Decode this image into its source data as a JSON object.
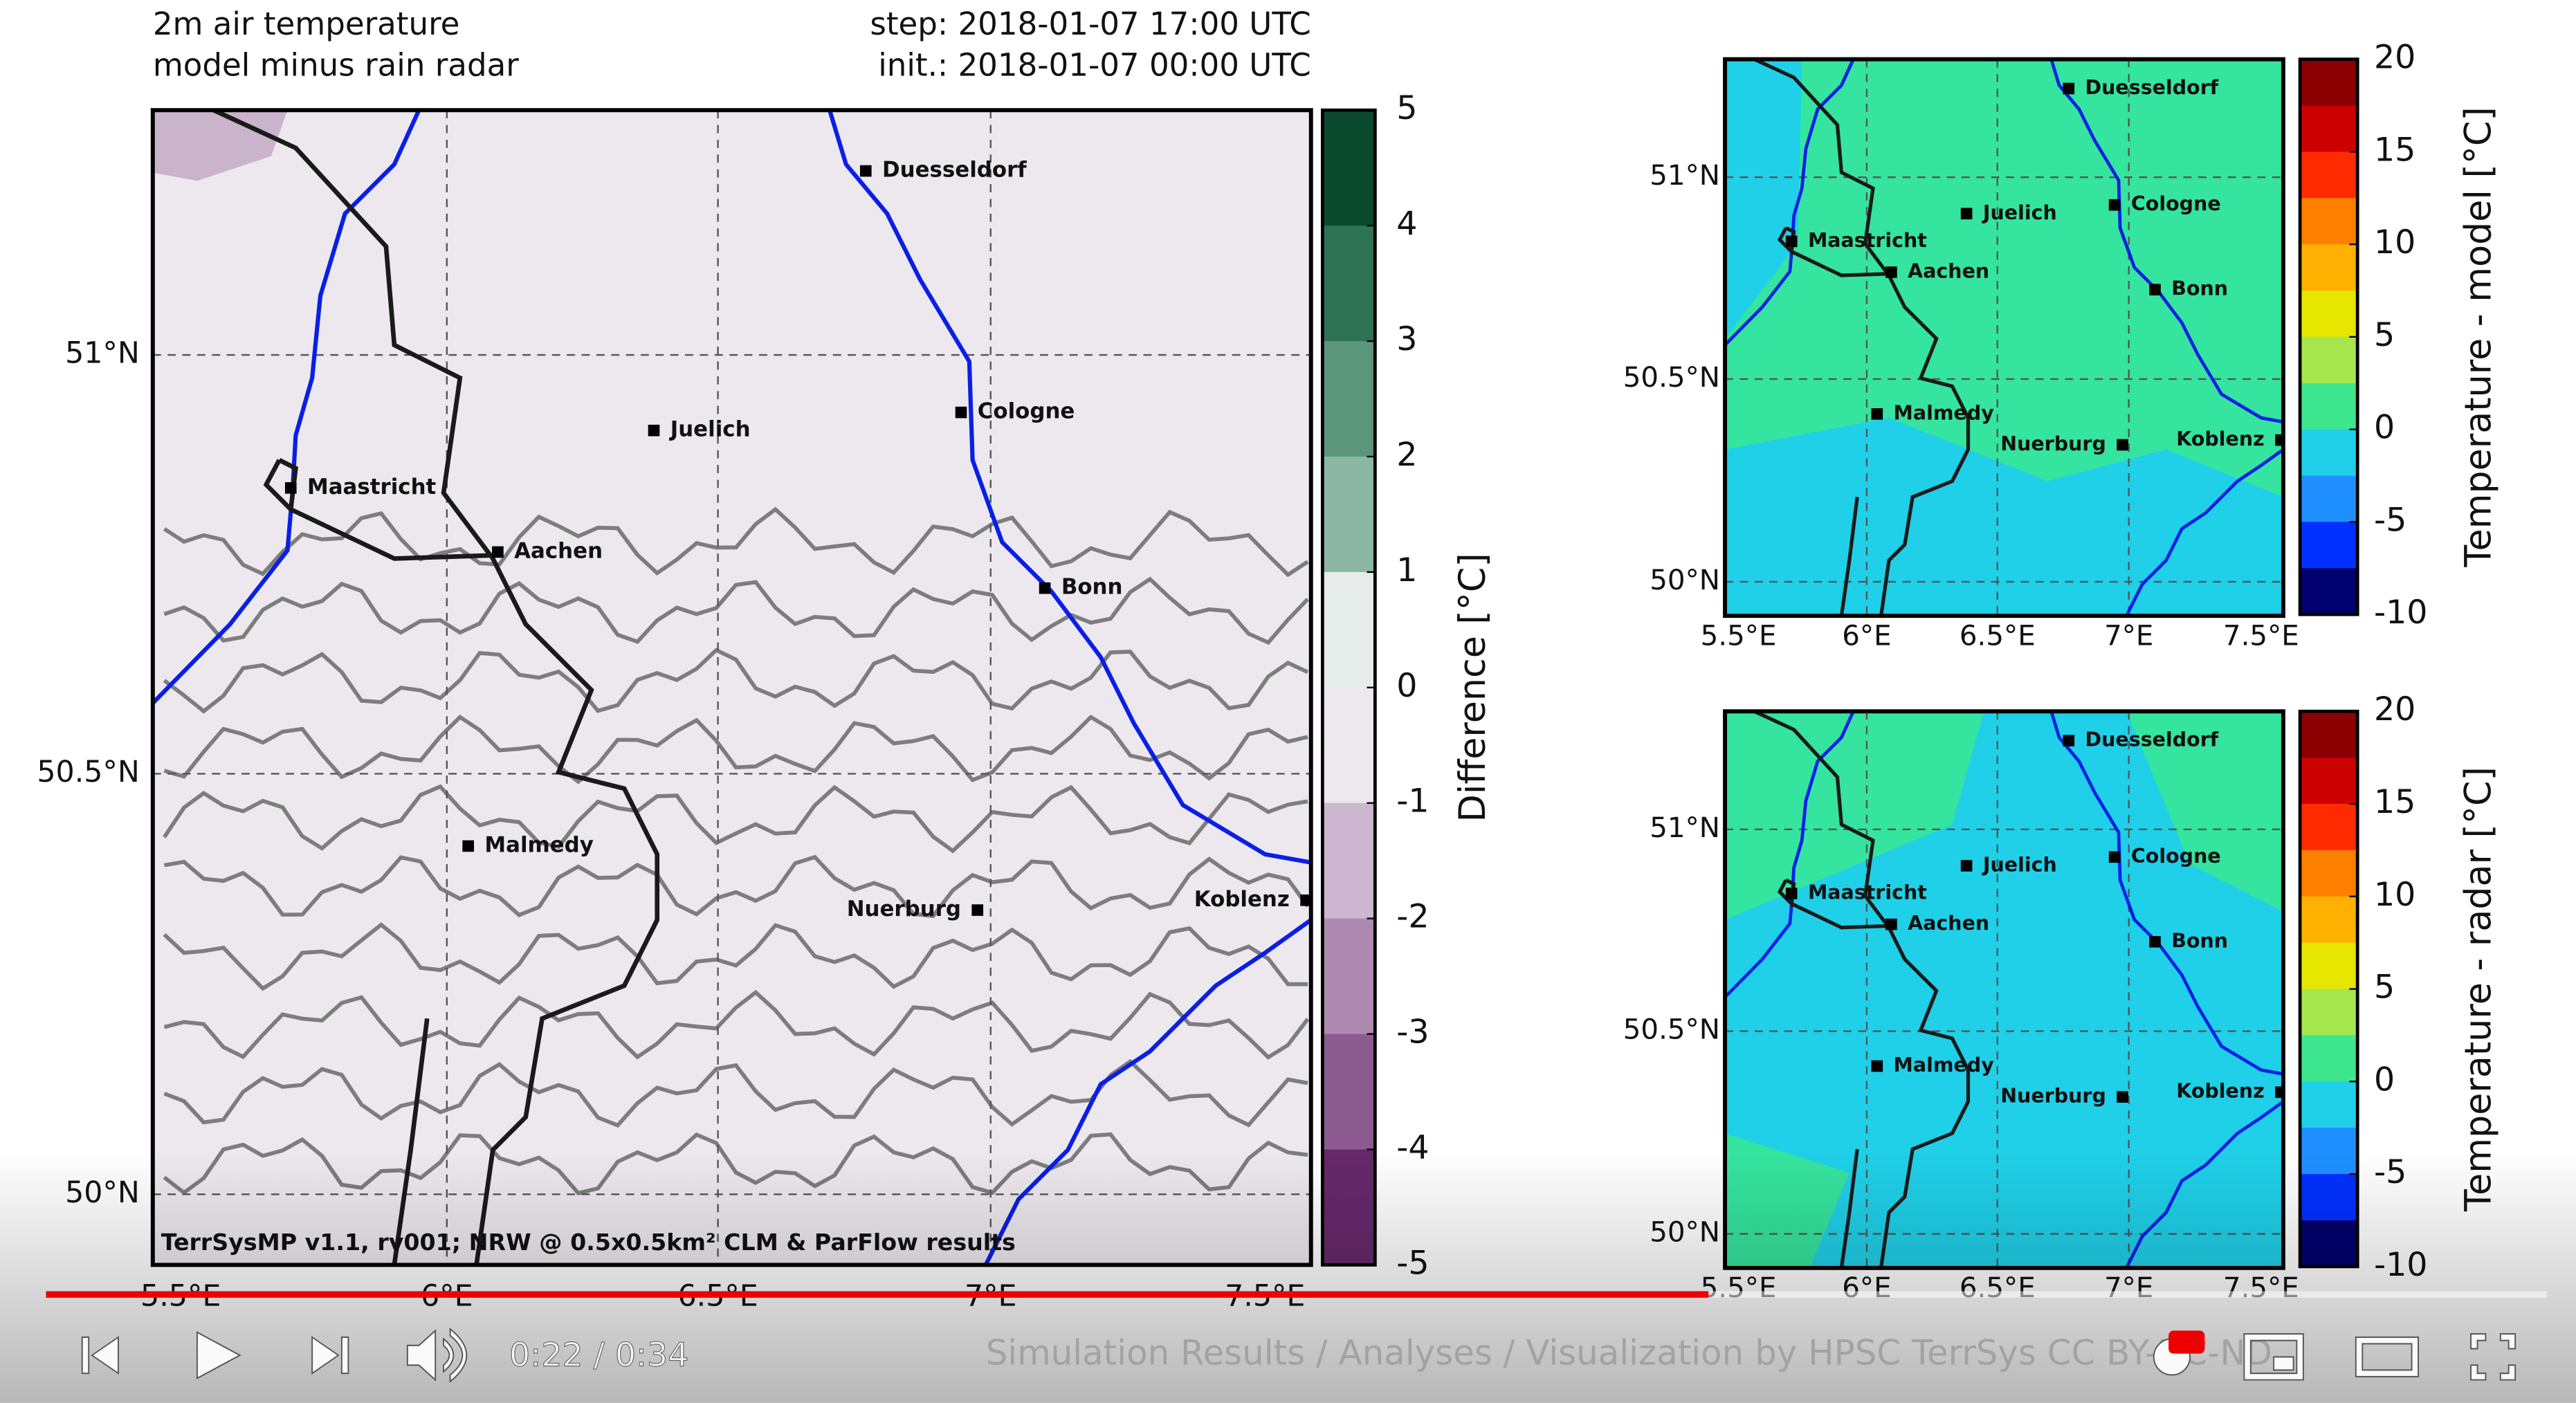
{
  "main_map": {
    "title": [
      "2m air temperature",
      "model minus rain radar"
    ],
    "step": "step: 2018-01-07 17:00 UTC",
    "init": "init.: 2018-01-07 00:00 UTC",
    "lat_labels": [
      "51°N",
      "50.5°N",
      "50°N"
    ],
    "lon_labels": [
      "5.5°E",
      "6°E",
      "6.5°E",
      "7°E",
      "7.5°E"
    ],
    "cities": [
      "Duesseldorf",
      "Juelich",
      "Cologne",
      "Maastricht",
      "Aachen",
      "Bonn",
      "Malmedy",
      "Nuerburg",
      "Koblenz"
    ],
    "colorbar": {
      "label": "Difference [°C]",
      "ticks": [
        "5",
        "4",
        "3",
        "2",
        "1",
        "0",
        "-1",
        "-2",
        "-3",
        "-4",
        "-5"
      ]
    },
    "footer": "TerrSysMP v1.1, rv001; NRW @ 0.5x0.5km² CLM & ParFlow results"
  },
  "model_map": {
    "lat_labels": [
      "51°N",
      "50.5°N",
      "50°N"
    ],
    "lon_labels": [
      "5.5°E",
      "6°E",
      "6.5°E",
      "7°E",
      "7.5°E"
    ],
    "cities": [
      "Duesseldorf",
      "Juelich",
      "Cologne",
      "Maastricht",
      "Aachen",
      "Bonn",
      "Malmedy",
      "Nuerburg",
      "Koblenz"
    ],
    "colorbar": {
      "label": "Temperature - model [°C]",
      "ticks": [
        "20",
        "15",
        "10",
        "5",
        "0",
        "-5",
        "-10"
      ]
    }
  },
  "radar_map": {
    "lat_labels": [
      "51°N",
      "50.5°N",
      "50°N"
    ],
    "lon_labels": [
      "5.5°E",
      "6°E",
      "6.5°E",
      "7°E",
      "7.5°E"
    ],
    "cities": [
      "Duesseldorf",
      "Juelich",
      "Cologne",
      "Maastricht",
      "Aachen",
      "Bonn",
      "Malmedy",
      "Nuerburg",
      "Koblenz"
    ],
    "colorbar": {
      "label": "Temperature - radar [°C]",
      "ticks": [
        "20",
        "15",
        "10",
        "5",
        "0",
        "-5",
        "-10"
      ]
    }
  },
  "player": {
    "time": "0:22 / 0:34",
    "watermark": "Simulation Results / Analyses / Visualization by HPSC TerrSys CC BY-NC-ND"
  }
}
